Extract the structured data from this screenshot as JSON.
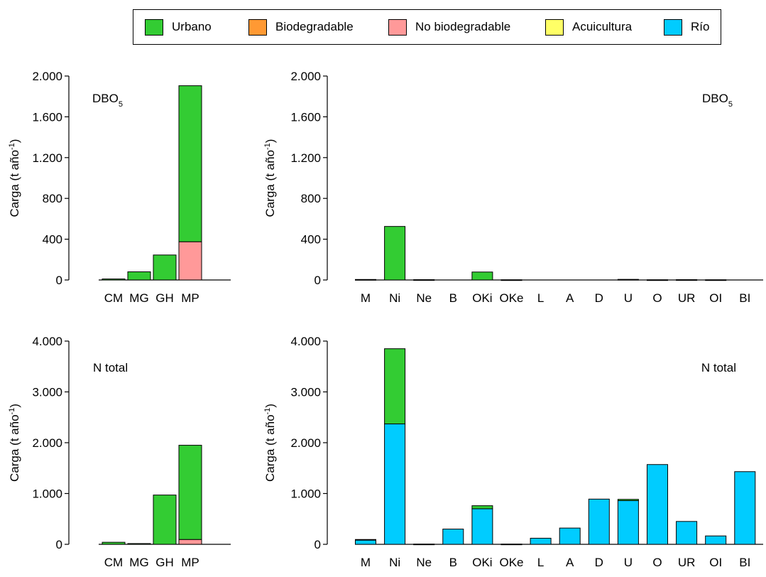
{
  "legend": {
    "items": [
      {
        "label": "Urbano",
        "color": "#33cc33"
      },
      {
        "label": "Biodegradable",
        "color": "#ff9933"
      },
      {
        "label": "No biodegradable",
        "color": "#ff9999"
      },
      {
        "label": "Acuicultura",
        "color": "#ffff66"
      },
      {
        "label": "Río",
        "color": "#00ccff"
      }
    ]
  },
  "chart_data": [
    {
      "type": "bar",
      "stacked": true,
      "annotation": "DBO",
      "annotation_sub": "5",
      "ylabel": "Carga (t año",
      "ylabel_sup": "-1",
      "ylabel_tail": ")",
      "ylim": [
        0,
        2000
      ],
      "yticks": [
        0,
        400,
        800,
        1200,
        1600,
        2000
      ],
      "ytick_labels": [
        "0",
        "400",
        "800",
        "1.200",
        "1.600",
        "2.000"
      ],
      "categories": [
        "CM",
        "MG",
        "GH",
        "MP"
      ],
      "series": [
        {
          "name": "No biodegradable",
          "color": "#ff9999",
          "values": [
            0,
            0,
            0,
            375
          ]
        },
        {
          "name": "Urbano",
          "color": "#33cc33",
          "values": [
            10,
            80,
            245,
            1530
          ]
        }
      ]
    },
    {
      "type": "bar",
      "stacked": true,
      "annotation": "DBO",
      "annotation_sub": "5",
      "ylabel": "Carga (t año",
      "ylabel_sup": "-1",
      "ylabel_tail": ")",
      "ylim": [
        0,
        2000
      ],
      "yticks": [
        0,
        400,
        800,
        1200,
        1600,
        2000
      ],
      "ytick_labels": [
        "0",
        "400",
        "800",
        "1.200",
        "1.600",
        "2.000"
      ],
      "categories": [
        "M",
        "Ni",
        "Ne",
        "B",
        "OKi",
        "OKe",
        "L",
        "A",
        "D",
        "U",
        "O",
        "UR",
        "OI",
        "BI"
      ],
      "series": [
        {
          "name": "Urbano",
          "color": "#33cc33",
          "values": [
            5,
            525,
            3,
            0,
            78,
            2,
            0,
            0,
            0,
            6,
            2,
            3,
            2,
            0
          ]
        }
      ]
    },
    {
      "type": "bar",
      "stacked": true,
      "annotation": "N total",
      "annotation_sub": "",
      "ylabel": "Carga (t año",
      "ylabel_sup": "-1",
      "ylabel_tail": ")",
      "ylim": [
        0,
        4000
      ],
      "yticks": [
        0,
        1000,
        2000,
        3000,
        4000
      ],
      "ytick_labels": [
        "0",
        "1.000",
        "2.000",
        "3.000",
        "4.000"
      ],
      "categories": [
        "CM",
        "MG",
        "GH",
        "MP"
      ],
      "series": [
        {
          "name": "No biodegradable",
          "color": "#ff9999",
          "values": [
            0,
            0,
            0,
            95
          ]
        },
        {
          "name": "Urbano",
          "color": "#33cc33",
          "values": [
            40,
            15,
            970,
            1855
          ]
        }
      ]
    },
    {
      "type": "bar",
      "stacked": true,
      "annotation": "N total",
      "annotation_sub": "",
      "ylabel": "Carga (t año",
      "ylabel_sup": "-1",
      "ylabel_tail": ")",
      "ylim": [
        0,
        4000
      ],
      "yticks": [
        0,
        1000,
        2000,
        3000,
        4000
      ],
      "ytick_labels": [
        "0",
        "1.000",
        "2.000",
        "3.000",
        "4.000"
      ],
      "categories": [
        "M",
        "Ni",
        "Ne",
        "B",
        "OKi",
        "OKe",
        "L",
        "A",
        "D",
        "U",
        "O",
        "UR",
        "OI",
        "BI"
      ],
      "series": [
        {
          "name": "Río",
          "color": "#00ccff",
          "values": [
            90,
            2370,
            0,
            300,
            700,
            0,
            120,
            320,
            890,
            860,
            1570,
            450,
            165,
            1430
          ]
        },
        {
          "name": "Urbano",
          "color": "#33cc33",
          "values": [
            5,
            1480,
            5,
            0,
            60,
            5,
            0,
            0,
            0,
            25,
            0,
            0,
            0,
            0
          ]
        }
      ]
    }
  ]
}
